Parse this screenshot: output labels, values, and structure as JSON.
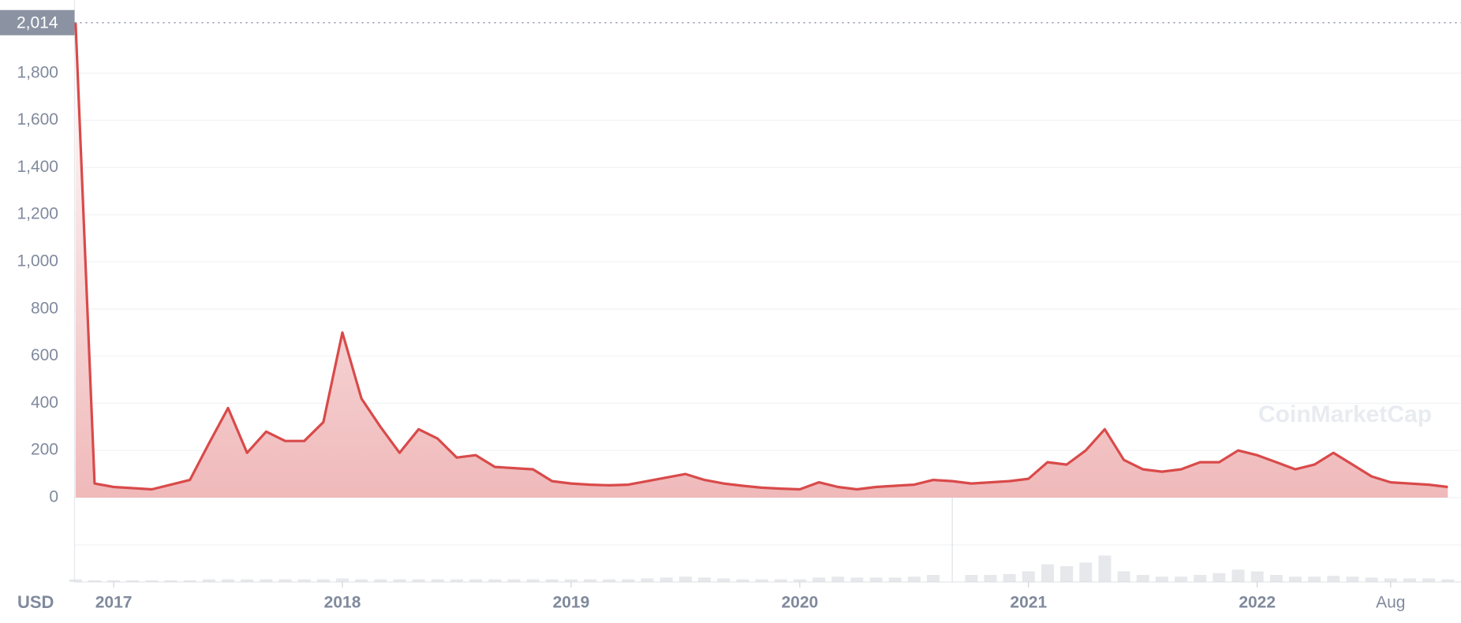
{
  "chart_data": {
    "type": "line",
    "x": [
      "2016-11",
      "2016-12",
      "2017-01",
      "2017-02",
      "2017-03",
      "2017-04",
      "2017-05",
      "2017-06",
      "2017-07",
      "2017-08",
      "2017-09",
      "2017-10",
      "2017-11",
      "2017-12",
      "2018-01",
      "2018-02",
      "2018-03",
      "2018-04",
      "2018-05",
      "2018-06",
      "2018-07",
      "2018-08",
      "2018-09",
      "2018-10",
      "2018-11",
      "2018-12",
      "2019-01",
      "2019-02",
      "2019-03",
      "2019-04",
      "2019-05",
      "2019-06",
      "2019-07",
      "2019-08",
      "2019-09",
      "2019-10",
      "2019-11",
      "2019-12",
      "2020-01",
      "2020-02",
      "2020-03",
      "2020-04",
      "2020-05",
      "2020-06",
      "2020-07",
      "2020-08",
      "2020-09",
      "2020-10",
      "2020-11",
      "2020-12",
      "2021-01",
      "2021-02",
      "2021-03",
      "2021-04",
      "2021-05",
      "2021-06",
      "2021-07",
      "2021-08",
      "2021-09",
      "2021-10",
      "2021-11",
      "2021-12",
      "2022-01",
      "2022-02",
      "2022-03",
      "2022-04",
      "2022-05",
      "2022-06",
      "2022-07",
      "2022-08",
      "2022-09",
      "2022-10",
      "2022-11"
    ],
    "series": [
      {
        "color": "#d94a4a",
        "values": [
          2014,
          60,
          45,
          40,
          35,
          55,
          75,
          230,
          380,
          190,
          280,
          240,
          240,
          320,
          700,
          420,
          300,
          190,
          290,
          250,
          170,
          180,
          130,
          125,
          120,
          70,
          60,
          55,
          52,
          55,
          70,
          85,
          100,
          75,
          60,
          50,
          42,
          38,
          35,
          65,
          45,
          35,
          45,
          50,
          55,
          75,
          70,
          60,
          65,
          70,
          80,
          150,
          140,
          200,
          290,
          160,
          120,
          110,
          120,
          150,
          150,
          200,
          180,
          150,
          120,
          140,
          190,
          140,
          90,
          65,
          60,
          55,
          45
        ]
      }
    ],
    "volume": {
      "color": "#d5d8de",
      "ylim": [
        0,
        100
      ],
      "values": [
        3,
        2,
        2,
        2,
        2,
        2,
        2,
        3,
        3,
        3,
        3,
        3,
        3,
        3,
        4,
        3,
        3,
        3,
        3,
        3,
        3,
        3,
        3,
        3,
        3,
        3,
        3,
        3,
        3,
        3,
        4,
        5,
        6,
        5,
        4,
        3,
        3,
        3,
        3,
        5,
        6,
        5,
        5,
        5,
        6,
        8,
        100,
        8,
        8,
        9,
        12,
        20,
        18,
        22,
        30,
        12,
        8,
        6,
        6,
        8,
        10,
        14,
        12,
        8,
        6,
        6,
        7,
        6,
        5,
        4,
        4,
        4,
        3
      ]
    },
    "ylim": [
      0,
      2100
    ],
    "yticks": [
      0,
      {
        "value": 200,
        "label": "200"
      },
      {
        "value": 400,
        "label": "400"
      },
      {
        "value": 600,
        "label": "600"
      },
      {
        "value": 800,
        "label": "800"
      },
      {
        "value": 1000,
        "label": "1,000"
      },
      {
        "value": 1200,
        "label": "1,200"
      },
      {
        "value": 1400,
        "label": "1,400"
      },
      {
        "value": 1600,
        "label": "1,600"
      },
      {
        "value": 1800,
        "label": "1,800"
      }
    ],
    "xticks": [
      {
        "value": "2017-01",
        "label": "2017"
      },
      {
        "value": "2018-01",
        "label": "2018"
      },
      {
        "value": "2019-01",
        "label": "2019"
      },
      {
        "value": "2020-01",
        "label": "2020"
      },
      {
        "value": "2021-01",
        "label": "2021"
      },
      {
        "value": "2022-01",
        "label": "2022"
      },
      {
        "value": "2022-08",
        "label": "Aug"
      }
    ],
    "price_marker": {
      "value": 2014,
      "label": "2,014"
    },
    "currency": "USD",
    "watermark": "CoinMarketCap",
    "grid": true
  }
}
